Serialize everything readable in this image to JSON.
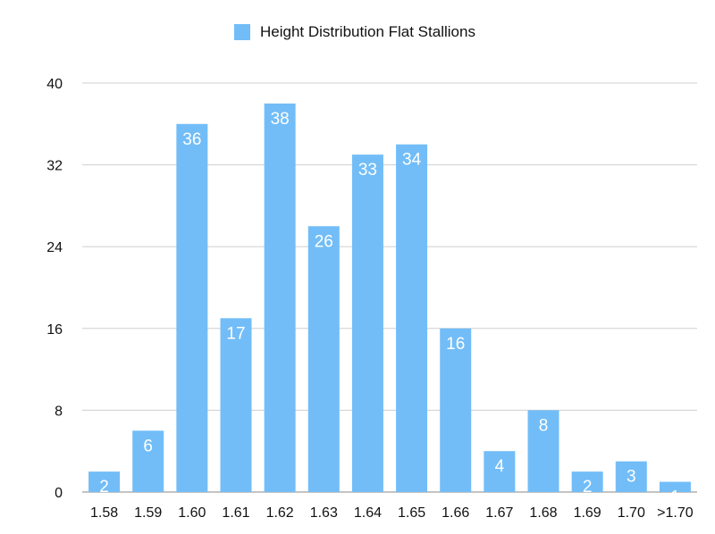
{
  "chart_data": {
    "type": "bar",
    "legend": "Height Distribution Flat Stallions",
    "legend_position": "top-center",
    "categories": [
      "1.58",
      "1.59",
      "1.60",
      "1.61",
      "1.62",
      "1.63",
      "1.64",
      "1.65",
      "1.66",
      "1.67",
      "1.68",
      "1.69",
      "1.70",
      ">1.70"
    ],
    "series": [
      {
        "name": "Height Distribution Flat Stallions",
        "values": [
          2,
          6,
          36,
          17,
          38,
          26,
          33,
          34,
          16,
          4,
          8,
          2,
          3,
          1
        ]
      }
    ],
    "ylim": [
      0,
      40
    ],
    "yticks": [
      0,
      8,
      16,
      24,
      32,
      40
    ],
    "grid": true,
    "bar_color": "#72bdf7",
    "label_color": "#ffffff"
  }
}
